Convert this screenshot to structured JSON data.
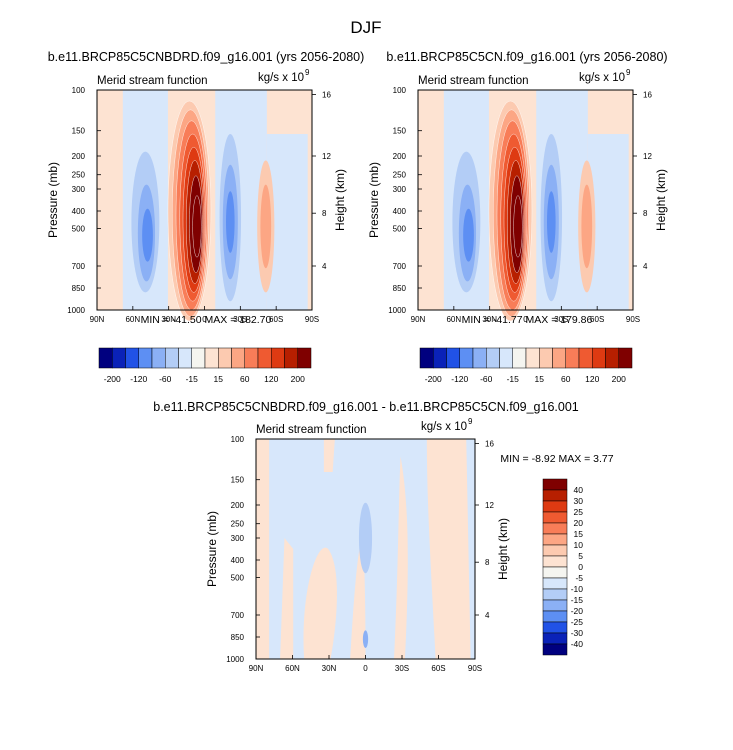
{
  "figure": {
    "title": "DJF"
  },
  "colors": {
    "blue_scale": [
      "#00007f",
      "#0a22b8",
      "#2152e6",
      "#5d8ff3",
      "#8bb0f5",
      "#b3cdf6",
      "#d7e7fb",
      "#f5f5f0"
    ],
    "red_scale": [
      "#fde3d2",
      "#fccab0",
      "#fca684",
      "#f87d58",
      "#ef5a31",
      "#de3a12",
      "#b71f00",
      "#7f0000"
    ],
    "contour_line": "#ffffff"
  },
  "chart_data": [
    {
      "type": "heatmap",
      "title": "b.e11.BRCP85C5CNBDRD.f09_g16.001 (yrs 2056-2080)",
      "left_label": "Merid stream function",
      "right_label": "kg/s x 10",
      "right_label_exp": "9",
      "ylabel": "Pressure (mb)",
      "y2label": "Height (km)",
      "x_ticks": [
        "90N",
        "60N",
        "30N",
        "0",
        "30S",
        "60S",
        "90S"
      ],
      "y_ticks": [
        "100",
        "150",
        "200",
        "250",
        "300",
        "400",
        "500",
        "700",
        "850",
        "1000"
      ],
      "y2_ticks": [
        "16",
        "12",
        "8",
        "4"
      ],
      "stats": "MIN = -41.50  MAX = 182.70",
      "colorbar": {
        "orientation": "horizontal",
        "tick_labels": [
          "-200",
          "-120",
          "-60",
          "-15",
          "15",
          "60",
          "120",
          "200"
        ]
      }
    },
    {
      "type": "heatmap",
      "title": "b.e11.BRCP85C5CN.f09_g16.001 (yrs 2056-2080)",
      "left_label": "Merid stream function",
      "right_label": "kg/s x 10",
      "right_label_exp": "9",
      "ylabel": "Pressure (mb)",
      "y2label": "Height (km)",
      "x_ticks": [
        "90N",
        "60N",
        "30N",
        "0",
        "30S",
        "60S",
        "90S"
      ],
      "y_ticks": [
        "100",
        "150",
        "200",
        "250",
        "300",
        "400",
        "500",
        "700",
        "850",
        "1000"
      ],
      "y2_ticks": [
        "16",
        "12",
        "8",
        "4"
      ],
      "stats": "MIN = -41.77  MAX = 179.86",
      "colorbar": {
        "orientation": "horizontal",
        "tick_labels": [
          "-200",
          "-120",
          "-60",
          "-15",
          "15",
          "60",
          "120",
          "200"
        ]
      }
    },
    {
      "type": "heatmap",
      "title": "b.e11.BRCP85C5CNBDRD.f09_g16.001 - b.e11.BRCP85C5CN.f09_g16.001",
      "left_label": "Merid stream function",
      "right_label": "kg/s x 10",
      "right_label_exp": "9",
      "ylabel": "Pressure (mb)",
      "y2label": "Height (km)",
      "x_ticks": [
        "90N",
        "60N",
        "30N",
        "0",
        "30S",
        "60S",
        "90S"
      ],
      "y_ticks": [
        "100",
        "150",
        "200",
        "250",
        "300",
        "400",
        "500",
        "700",
        "850",
        "1000"
      ],
      "y2_ticks": [
        "16",
        "12",
        "8",
        "4"
      ],
      "stats": "MIN = -8.92  MAX =  3.77",
      "colorbar": {
        "orientation": "vertical",
        "tick_labels": [
          "40",
          "30",
          "25",
          "20",
          "15",
          "10",
          "5",
          "0",
          "-5",
          "-10",
          "-15",
          "-20",
          "-25",
          "-30",
          "-40"
        ]
      }
    }
  ]
}
